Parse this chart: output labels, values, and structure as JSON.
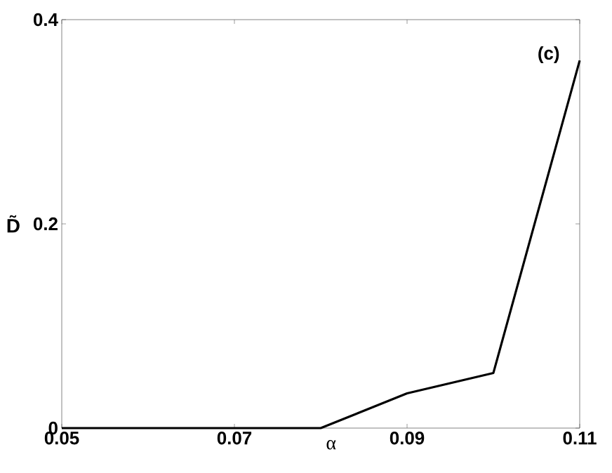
{
  "chart_data": {
    "type": "line",
    "xlabel": "α",
    "ylabel": "D̃",
    "annotations": [
      "(c)"
    ],
    "x": [
      0.05,
      0.08,
      0.09,
      0.1,
      0.11
    ],
    "series": [
      {
        "color": "#000000",
        "values": [
          0,
          0,
          0.034,
          0.054,
          0.36
        ]
      }
    ],
    "xlim": [
      0.05,
      0.11
    ],
    "ylim": [
      0,
      0.4
    ],
    "xticks": [
      0.05,
      0.07,
      0.09,
      0.11
    ],
    "yticks": [
      0,
      0.2,
      0.4
    ],
    "marker": "none",
    "line_style": "solid"
  }
}
